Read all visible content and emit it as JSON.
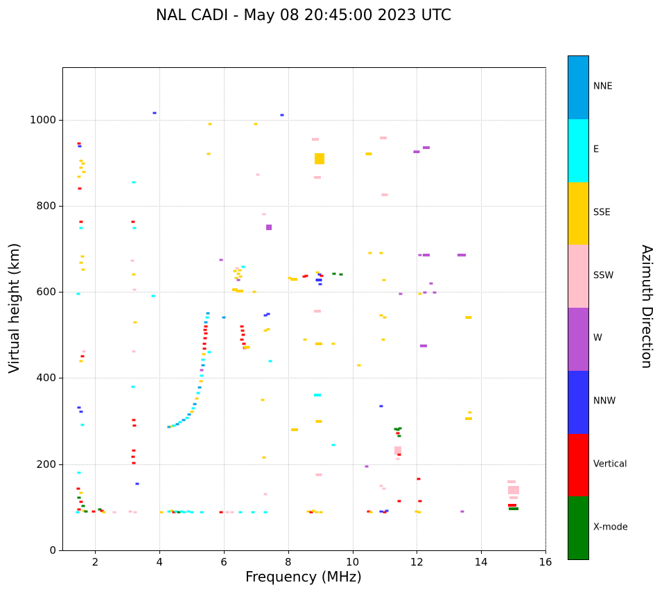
{
  "chart_data": {
    "type": "scatter",
    "title": "NAL CADI - May 08 20:45:00 2023 UTC",
    "xlabel": "Frequency (MHz)",
    "ylabel": "Virtual height (km)",
    "xlim": [
      1,
      16
    ],
    "ylim": [
      0,
      1120
    ],
    "xticks": [
      2,
      4,
      6,
      8,
      10,
      12,
      14,
      16
    ],
    "yticks": [
      0,
      200,
      400,
      600,
      800,
      1000
    ],
    "grid": true,
    "legend_position": "right-colorbar",
    "colorbar": {
      "label": "Azimuth Direction",
      "categories": [
        {
          "label": "NNE",
          "color": "#00a2e8"
        },
        {
          "label": "E",
          "color": "#00ffff"
        },
        {
          "label": "SSE",
          "color": "#ffd100"
        },
        {
          "label": "SSW",
          "color": "#ffc0cb"
        },
        {
          "label": "W",
          "color": "#ba55d3"
        },
        {
          "label": "NNW",
          "color": "#3333ff"
        },
        {
          "label": "Vertical",
          "color": "#ff0000"
        },
        {
          "label": "X-mode",
          "color": "#008000"
        }
      ]
    },
    "points": [
      [
        1.5,
        945,
        "Vertical"
      ],
      [
        1.52,
        938,
        "NNW"
      ],
      [
        1.55,
        905,
        "SSE"
      ],
      [
        1.62,
        898,
        "SSE"
      ],
      [
        1.57,
        888,
        "SSE"
      ],
      [
        1.65,
        878,
        "SSE"
      ],
      [
        1.5,
        868,
        "SSE"
      ],
      [
        1.52,
        840,
        "Vertical"
      ],
      [
        1.55,
        762,
        "Vertical"
      ],
      [
        1.55,
        748,
        "E"
      ],
      [
        1.6,
        683,
        "SSE"
      ],
      [
        1.57,
        668,
        "SSE"
      ],
      [
        1.62,
        652,
        "SSE"
      ],
      [
        1.48,
        595,
        "E"
      ],
      [
        1.65,
        462,
        "SSW"
      ],
      [
        1.6,
        450,
        "Vertical"
      ],
      [
        1.55,
        440,
        "SSE"
      ],
      [
        1.5,
        332,
        "NNW"
      ],
      [
        1.55,
        322,
        "NNW"
      ],
      [
        1.6,
        292,
        "E"
      ],
      [
        1.5,
        180,
        "E"
      ],
      [
        1.48,
        143,
        "Vertical"
      ],
      [
        1.55,
        133,
        "SSE"
      ],
      [
        1.5,
        122,
        "X-mode"
      ],
      [
        1.57,
        112,
        "Vertical"
      ],
      [
        1.62,
        103,
        "X-mode"
      ],
      [
        1.5,
        95,
        "Vertical"
      ],
      [
        1.65,
        92,
        "SSE"
      ],
      [
        1.72,
        90,
        "X-mode"
      ],
      [
        1.45,
        88,
        "E"
      ],
      [
        1.95,
        90,
        "Vertical"
      ],
      [
        2.15,
        95,
        "X-mode"
      ],
      [
        2.2,
        91,
        "Vertical"
      ],
      [
        2.28,
        89,
        "SSE"
      ],
      [
        2.6,
        89,
        "SSW"
      ],
      [
        3.2,
        855,
        "E"
      ],
      [
        3.18,
        762,
        "Vertical"
      ],
      [
        3.22,
        748,
        "E"
      ],
      [
        3.15,
        672,
        "SSW"
      ],
      [
        3.2,
        640,
        "SSE"
      ],
      [
        3.22,
        605,
        "SSW"
      ],
      [
        3.25,
        530,
        "SSE"
      ],
      [
        3.2,
        462,
        "SSW"
      ],
      [
        3.18,
        380,
        "E"
      ],
      [
        3.2,
        302,
        "Vertical"
      ],
      [
        3.22,
        290,
        "Vertical"
      ],
      [
        3.2,
        232,
        "Vertical"
      ],
      [
        3.18,
        218,
        "Vertical"
      ],
      [
        3.2,
        202,
        "Vertical"
      ],
      [
        3.3,
        155,
        "NNW"
      ],
      [
        3.1,
        90,
        "SSW"
      ],
      [
        3.25,
        88,
        "SSW"
      ],
      [
        3.85,
        1015,
        "NNW"
      ],
      [
        3.8,
        590,
        "E"
      ],
      [
        4.05,
        88,
        "SSE"
      ],
      [
        4.3,
        90,
        "E"
      ],
      [
        4.38,
        92,
        "SSE"
      ],
      [
        4.45,
        89,
        "Vertical"
      ],
      [
        4.52,
        90,
        "E"
      ],
      [
        4.6,
        88,
        "X-mode"
      ],
      [
        4.68,
        90,
        "E"
      ],
      [
        4.78,
        89,
        "E"
      ],
      [
        4.9,
        90,
        "E"
      ],
      [
        5.0,
        88,
        "E"
      ],
      [
        4.3,
        287,
        "NNE"
      ],
      [
        4.38,
        288,
        "SSE"
      ],
      [
        4.45,
        290,
        "E"
      ],
      [
        4.55,
        293,
        "NNE"
      ],
      [
        4.65,
        297,
        "E"
      ],
      [
        4.75,
        302,
        "NNE"
      ],
      [
        4.85,
        308,
        "E"
      ],
      [
        4.92,
        315,
        "NNE"
      ],
      [
        5.0,
        322,
        "SSE"
      ],
      [
        5.05,
        330,
        "E"
      ],
      [
        5.1,
        340,
        "NNE"
      ],
      [
        5.15,
        352,
        "SSE"
      ],
      [
        5.2,
        365,
        "E"
      ],
      [
        5.25,
        378,
        "NNE"
      ],
      [
        5.28,
        392,
        "SSE"
      ],
      [
        5.3,
        405,
        "E"
      ],
      [
        5.32,
        418,
        "W"
      ],
      [
        5.35,
        430,
        "NNE"
      ],
      [
        5.35,
        443,
        "E"
      ],
      [
        5.38,
        455,
        "SSE"
      ],
      [
        5.4,
        468,
        "Vertical"
      ],
      [
        5.4,
        480,
        "Vertical"
      ],
      [
        5.42,
        492,
        "Vertical"
      ],
      [
        5.44,
        503,
        "Vertical"
      ],
      [
        5.42,
        512,
        "Vertical"
      ],
      [
        5.45,
        520,
        "Vertical"
      ],
      [
        5.44,
        530,
        "NNE"
      ],
      [
        5.48,
        540,
        "E"
      ],
      [
        5.5,
        550,
        "NNE"
      ],
      [
        5.55,
        460,
        "E"
      ],
      [
        5.52,
        920,
        "SSE"
      ],
      [
        5.57,
        990,
        "SSE"
      ],
      [
        5.3,
        88,
        "E"
      ],
      [
        5.92,
        675,
        "W"
      ],
      [
        6.0,
        540,
        "NNE"
      ],
      [
        5.92,
        89,
        "Vertical"
      ],
      [
        6.1,
        88,
        "SSW"
      ],
      [
        6.25,
        88,
        "SSW"
      ],
      [
        6.35,
        648,
        "SSE"
      ],
      [
        6.42,
        655,
        "SSW"
      ],
      [
        6.45,
        642,
        "SSE"
      ],
      [
        6.5,
        650,
        "SSE"
      ],
      [
        6.38,
        632,
        "SSE"
      ],
      [
        6.45,
        628,
        "W"
      ],
      [
        6.52,
        636,
        "SSE"
      ],
      [
        6.6,
        658,
        "E"
      ],
      [
        6.35,
        605,
        "SSE",
        8,
        4
      ],
      [
        6.5,
        602,
        "SSE",
        10,
        4
      ],
      [
        6.55,
        520,
        "Vertical"
      ],
      [
        6.58,
        510,
        "Vertical"
      ],
      [
        6.6,
        500,
        "Vertical"
      ],
      [
        6.55,
        490,
        "Vertical"
      ],
      [
        6.62,
        480,
        "Vertical"
      ],
      [
        6.65,
        470,
        "Vertical"
      ],
      [
        6.72,
        472,
        "SSE",
        9,
        4
      ],
      [
        6.52,
        88,
        "E"
      ],
      [
        6.9,
        88,
        "E"
      ],
      [
        6.95,
        600,
        "SSE"
      ],
      [
        7.0,
        990,
        "SSE"
      ],
      [
        7.05,
        872,
        "SSW"
      ],
      [
        7.25,
        780,
        "SSW"
      ],
      [
        7.4,
        750,
        "W",
        8,
        8
      ],
      [
        7.3,
        545,
        "NNW"
      ],
      [
        7.38,
        548,
        "NNW"
      ],
      [
        7.3,
        510,
        "SSE"
      ],
      [
        7.38,
        513,
        "SSE"
      ],
      [
        7.45,
        440,
        "E"
      ],
      [
        7.2,
        350,
        "SSE"
      ],
      [
        7.25,
        215,
        "SSE"
      ],
      [
        7.3,
        130,
        "SSW"
      ],
      [
        7.3,
        88,
        "E"
      ],
      [
        7.8,
        1010,
        "NNW"
      ],
      [
        8.05,
        632,
        "SSE"
      ],
      [
        8.18,
        630,
        "SSE",
        10,
        4
      ],
      [
        8.2,
        280,
        "SSE",
        10,
        4
      ],
      [
        8.5,
        636,
        "Vertical"
      ],
      [
        8.57,
        638,
        "Vertical"
      ],
      [
        8.52,
        490,
        "SSE"
      ],
      [
        8.62,
        90,
        "SSE"
      ],
      [
        8.72,
        88,
        "Vertical"
      ],
      [
        8.78,
        91,
        "SSE"
      ],
      [
        8.88,
        89,
        "SSE"
      ],
      [
        9.02,
        88,
        "SSE"
      ],
      [
        8.85,
        955,
        "SSW",
        10,
        4
      ],
      [
        8.97,
        910,
        "SSE",
        14,
        16
      ],
      [
        8.9,
        865,
        "SSW",
        10,
        4
      ],
      [
        8.9,
        645,
        "SSE"
      ],
      [
        8.97,
        640,
        "NNW"
      ],
      [
        9.03,
        637,
        "Vertical"
      ],
      [
        8.95,
        627,
        "NNW",
        9,
        4
      ],
      [
        9.0,
        618,
        "NNW"
      ],
      [
        8.9,
        555,
        "SSW",
        10,
        4
      ],
      [
        8.95,
        480,
        "SSE",
        10,
        4
      ],
      [
        8.9,
        360,
        "E",
        10,
        4
      ],
      [
        8.95,
        300,
        "SSE",
        9,
        4
      ],
      [
        8.95,
        175,
        "SSW",
        9,
        4
      ],
      [
        9.42,
        642,
        "X-mode"
      ],
      [
        9.65,
        640,
        "X-mode"
      ],
      [
        9.4,
        480,
        "SSE"
      ],
      [
        9.4,
        245,
        "E"
      ],
      [
        10.2,
        430,
        "SSE"
      ],
      [
        10.5,
        920,
        "SSE",
        9,
        4
      ],
      [
        10.55,
        690,
        "SSE"
      ],
      [
        10.45,
        195,
        "W"
      ],
      [
        10.5,
        90,
        "Vertical"
      ],
      [
        10.57,
        88,
        "SSE"
      ],
      [
        10.95,
        958,
        "SSW",
        10,
        4
      ],
      [
        11.0,
        825,
        "SSW",
        9,
        4
      ],
      [
        10.9,
        690,
        "SSE"
      ],
      [
        10.97,
        628,
        "SSE"
      ],
      [
        10.9,
        545,
        "SSE"
      ],
      [
        11.0,
        540,
        "SSE"
      ],
      [
        10.95,
        490,
        "SSE"
      ],
      [
        10.9,
        335,
        "NNW"
      ],
      [
        10.9,
        150,
        "SSW"
      ],
      [
        10.97,
        144,
        "SSW"
      ],
      [
        10.9,
        90,
        "NNW"
      ],
      [
        11.0,
        88,
        "Vertical"
      ],
      [
        11.07,
        91,
        "NNW"
      ],
      [
        11.35,
        282,
        "X-mode"
      ],
      [
        11.42,
        280,
        "X-mode"
      ],
      [
        11.48,
        283,
        "X-mode"
      ],
      [
        11.4,
        272,
        "Vertical"
      ],
      [
        11.46,
        266,
        "X-mode"
      ],
      [
        11.4,
        232,
        "SSW",
        10,
        12
      ],
      [
        11.46,
        222,
        "Vertical"
      ],
      [
        11.42,
        212,
        "SSW"
      ],
      [
        11.5,
        595,
        "W"
      ],
      [
        11.45,
        115,
        "Vertical"
      ],
      [
        12.0,
        925,
        "W",
        9,
        4
      ],
      [
        12.3,
        935,
        "W",
        10,
        4
      ],
      [
        12.1,
        685,
        "W"
      ],
      [
        12.3,
        685,
        "W",
        10,
        4
      ],
      [
        12.1,
        595,
        "SSE"
      ],
      [
        12.25,
        598,
        "W"
      ],
      [
        12.55,
        598,
        "W"
      ],
      [
        12.45,
        620,
        "W"
      ],
      [
        12.2,
        475,
        "W",
        10,
        4
      ],
      [
        12.05,
        165,
        "Vertical"
      ],
      [
        12.1,
        115,
        "Vertical"
      ],
      [
        12.0,
        90,
        "SSE"
      ],
      [
        12.08,
        88,
        "SSE"
      ],
      [
        13.4,
        685,
        "W",
        12,
        4
      ],
      [
        13.42,
        90,
        "W"
      ],
      [
        13.6,
        540,
        "SSE",
        9,
        4
      ],
      [
        13.65,
        320,
        "SSE"
      ],
      [
        13.6,
        305,
        "SSE",
        10,
        4
      ],
      [
        14.95,
        160,
        "SSW",
        12,
        4
      ],
      [
        15.0,
        140,
        "SSW",
        16,
        12
      ],
      [
        15.0,
        122,
        "SSW",
        12,
        4
      ],
      [
        14.97,
        105,
        "Vertical",
        12,
        4
      ],
      [
        15.0,
        97,
        "X-mode",
        14,
        4
      ]
    ]
  }
}
